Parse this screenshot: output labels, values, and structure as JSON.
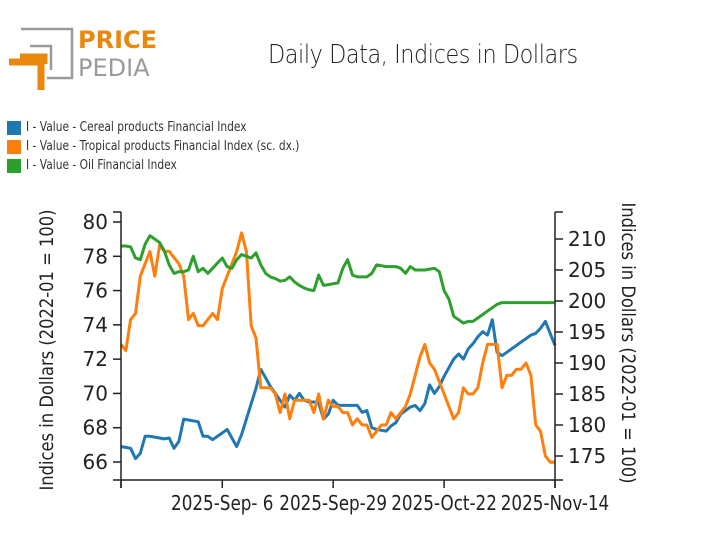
{
  "brand": {
    "name_top": "PRICE",
    "name_bottom": "PEDIA",
    "orange": "#e8880f",
    "gray": "#9a9a9a"
  },
  "chart_data": {
    "type": "line",
    "title": "Daily Data, Indices in Dollars",
    "xlabel": "",
    "ylabel": "Indices in Dollars (2022-01 = 100)",
    "ylabel_right": "Indices in Dollars (2022-01 = 100)",
    "ylim": [
      65,
      81
    ],
    "ylim_right": [
      172,
      214
    ],
    "x_range_days": [
      0,
      90
    ],
    "x_ticks": [
      {
        "day": 0,
        "label": ""
      },
      {
        "day": 21,
        "label": "2025-Sep- 6"
      },
      {
        "day": 44,
        "label": "2025-Sep-29"
      },
      {
        "day": 67,
        "label": "2025-Oct-22"
      },
      {
        "day": 90,
        "label": "2025-Nov-14"
      }
    ],
    "y_ticks": [
      66,
      68,
      70,
      72,
      74,
      76,
      78,
      80
    ],
    "y_ticks_right": [
      175,
      180,
      185,
      190,
      195,
      200,
      205,
      210
    ],
    "grid": false,
    "legend_position": "top-left",
    "series": [
      {
        "name": "I - Value - Cereal products Financial Index",
        "color": "#1f77b4",
        "axis": "left",
        "x": [
          0,
          1,
          2,
          3,
          4,
          5,
          6,
          7,
          8,
          9,
          10,
          11,
          12,
          13,
          14,
          15,
          16,
          17,
          18,
          19,
          20,
          21,
          22,
          23,
          24,
          25,
          26,
          27,
          28,
          29,
          30,
          31,
          32,
          33,
          34,
          35,
          36,
          37,
          38,
          39,
          40,
          41,
          42,
          43,
          44,
          45,
          46,
          47,
          48,
          49,
          50,
          51,
          52,
          53,
          54,
          55,
          56,
          57,
          58,
          59,
          60,
          61,
          62,
          63,
          64,
          65,
          66,
          67,
          68,
          69,
          70,
          71,
          72,
          73,
          74,
          75,
          76,
          77,
          78,
          79,
          80,
          81,
          82,
          83,
          84,
          85,
          86,
          87,
          88,
          89,
          90
        ],
        "values": [
          66.9,
          66.85,
          66.8,
          66.2,
          66.5,
          67.5,
          67.5,
          67.45,
          67.4,
          67.35,
          67.4,
          66.8,
          67.2,
          68.5,
          68.45,
          68.4,
          68.35,
          67.5,
          67.5,
          67.3,
          67.5,
          67.7,
          67.9,
          67.4,
          66.9,
          67.6,
          68.5,
          69.4,
          70.3,
          71.4,
          70.9,
          70.4,
          70.0,
          69.6,
          69.2,
          69.9,
          69.6,
          70.0,
          69.6,
          69.5,
          69.5,
          69.45,
          68.5,
          68.8,
          69.6,
          69.3,
          69.3,
          69.3,
          69.3,
          69.3,
          68.9,
          69.0,
          68.0,
          67.9,
          67.85,
          67.8,
          68.1,
          68.3,
          68.8,
          69.0,
          69.2,
          69.3,
          69.0,
          69.4,
          70.5,
          70.0,
          70.4,
          71.0,
          71.5,
          72.0,
          72.3,
          72.0,
          72.6,
          72.9,
          73.3,
          73.6,
          73.4,
          74.3,
          72.4,
          72.2,
          72.4,
          72.6,
          72.8,
          73.0,
          73.2,
          73.4,
          73.5,
          73.8,
          74.2,
          73.5,
          72.8
        ],
        "note": "approximate traced values"
      },
      {
        "name": "I - Value - Tropical products Financial Index (sc. dx.)",
        "color": "#ff7f0e",
        "axis": "right",
        "x": [
          0,
          1,
          2,
          3,
          4,
          5,
          6,
          7,
          8,
          9,
          10,
          11,
          12,
          13,
          14,
          15,
          16,
          17,
          18,
          19,
          20,
          21,
          22,
          23,
          24,
          25,
          26,
          27,
          28,
          29,
          30,
          31,
          32,
          33,
          34,
          35,
          36,
          37,
          38,
          39,
          40,
          41,
          42,
          43,
          44,
          45,
          46,
          47,
          48,
          49,
          50,
          51,
          52,
          53,
          54,
          55,
          56,
          57,
          58,
          59,
          60,
          61,
          62,
          63,
          64,
          65,
          66,
          67,
          68,
          69,
          70,
          71,
          72,
          73,
          74,
          75,
          76,
          77,
          78,
          79,
          80,
          81,
          82,
          83,
          84,
          85,
          86,
          87,
          88,
          89,
          90
        ],
        "values": [
          193,
          192,
          197,
          198,
          204,
          206,
          208,
          204,
          209,
          208,
          208,
          207,
          206,
          204,
          197,
          198,
          196,
          196,
          197,
          198,
          197,
          202,
          204,
          206,
          208,
          211,
          208,
          196,
          194,
          186,
          186,
          186,
          185,
          182,
          185,
          181,
          184,
          184,
          184,
          184,
          182,
          185,
          181,
          184,
          183,
          183,
          182,
          182,
          180,
          181,
          180,
          180,
          178,
          179,
          180,
          180,
          182,
          181,
          182,
          183,
          185,
          188,
          191,
          193,
          190,
          189,
          187,
          185,
          183,
          181,
          182,
          186,
          185,
          185,
          186,
          190,
          193,
          193,
          193,
          186,
          188,
          188,
          189,
          189,
          190,
          188,
          180,
          179,
          175,
          174,
          174
        ],
        "note": "approximate traced values"
      },
      {
        "name": "I - Value - Oil Financial Index",
        "color": "#2ca02c",
        "axis": "left",
        "x": [
          0,
          1,
          2,
          3,
          4,
          5,
          6,
          7,
          8,
          9,
          10,
          11,
          12,
          13,
          14,
          15,
          16,
          17,
          18,
          19,
          20,
          21,
          22,
          23,
          24,
          25,
          26,
          27,
          28,
          29,
          30,
          31,
          32,
          33,
          34,
          35,
          36,
          37,
          38,
          39,
          40,
          41,
          42,
          43,
          44,
          45,
          46,
          47,
          48,
          49,
          50,
          51,
          52,
          53,
          54,
          55,
          56,
          57,
          58,
          59,
          60,
          61,
          62,
          63,
          64,
          65,
          66,
          67,
          68,
          69,
          70,
          71,
          72,
          73,
          74,
          75,
          76,
          77,
          78,
          79,
          80,
          81,
          82,
          83,
          84,
          85,
          86,
          87,
          88,
          89,
          90
        ],
        "values": [
          78.6,
          78.6,
          78.55,
          77.9,
          77.8,
          78.7,
          79.2,
          79.0,
          78.8,
          78.3,
          77.5,
          77.0,
          77.1,
          77.1,
          77.2,
          78.0,
          77.1,
          77.3,
          77.0,
          77.3,
          77.6,
          77.9,
          77.4,
          77.3,
          77.8,
          78.1,
          78.0,
          77.9,
          78.2,
          77.5,
          77.0,
          76.8,
          76.7,
          76.55,
          76.6,
          76.8,
          76.5,
          76.3,
          76.15,
          76.05,
          76.0,
          76.9,
          76.3,
          76.35,
          76.4,
          76.45,
          77.3,
          77.8,
          76.9,
          76.8,
          76.8,
          76.8,
          77.0,
          77.5,
          77.45,
          77.4,
          77.4,
          77.4,
          77.3,
          77.0,
          77.4,
          77.2,
          77.2,
          77.2,
          77.25,
          77.3,
          77.1,
          76.0,
          75.5,
          74.5,
          74.3,
          74.1,
          74.2,
          74.2,
          74.4,
          74.6,
          74.8,
          75.0,
          75.2,
          75.3,
          75.3,
          75.3,
          75.3,
          75.3,
          75.3,
          75.3,
          75.3,
          75.3,
          75.3,
          75.3,
          75.3
        ],
        "note": "approximate traced values"
      }
    ]
  }
}
